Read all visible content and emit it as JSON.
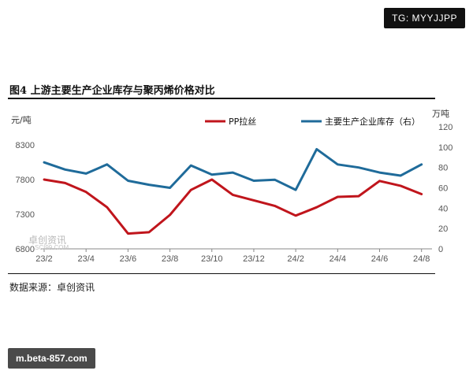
{
  "badges": {
    "top": "TG: MYYJJPP",
    "bottom": "m.beta-857.com"
  },
  "watermark": {
    "main": "卓创资讯",
    "sub": "SCI99.COM"
  },
  "colors": {
    "series_1": "#c0151c",
    "series_2": "#1f6b9a"
  },
  "chart_data": {
    "type": "line",
    "title": "图4 上游主要生产企业库存与聚丙烯价格对比",
    "source": "数据来源：卓创资讯",
    "left_axis": {
      "unit": "元/吨",
      "ylim": [
        6800,
        8300
      ],
      "ticks": [
        "6800",
        "7300",
        "7800",
        "8300"
      ]
    },
    "right_axis": {
      "unit": "万吨",
      "ylim": [
        0,
        120
      ],
      "ticks": [
        "0",
        "20",
        "40",
        "60",
        "80",
        "100",
        "120"
      ]
    },
    "x_ticks": [
      "23/2",
      "23/4",
      "23/6",
      "23/8",
      "23/10",
      "23/12",
      "24/2",
      "24/4",
      "24/6",
      "24/8"
    ],
    "legend_position": "top",
    "series": [
      {
        "name": "PP拉丝",
        "axis": "left",
        "x": [
          "23/2",
          "23/3",
          "23/4",
          "23/5",
          "23/6",
          "23/7",
          "23/8",
          "23/9",
          "23/10",
          "23/11",
          "23/12",
          "24/1",
          "24/2",
          "24/3",
          "24/4",
          "24/5",
          "24/6",
          "24/7",
          "24/8"
        ],
        "values": [
          7800,
          7750,
          7620,
          7400,
          7020,
          7040,
          7290,
          7650,
          7800,
          7580,
          7500,
          7420,
          7280,
          7400,
          7550,
          7560,
          7780,
          7710,
          7590
        ]
      },
      {
        "name": "主要生产企业库存（右）",
        "axis": "right",
        "x": [
          "23/2",
          "23/3",
          "23/4",
          "23/5",
          "23/6",
          "23/7",
          "23/8",
          "23/9",
          "23/10",
          "23/11",
          "23/12",
          "24/1",
          "24/2",
          "24/3",
          "24/4",
          "24/5",
          "24/6",
          "24/7",
          "24/8"
        ],
        "values": [
          85,
          78,
          74,
          83,
          67,
          63,
          60,
          82,
          73,
          75,
          67,
          68,
          58,
          98,
          83,
          80,
          75,
          72,
          83
        ]
      }
    ]
  }
}
